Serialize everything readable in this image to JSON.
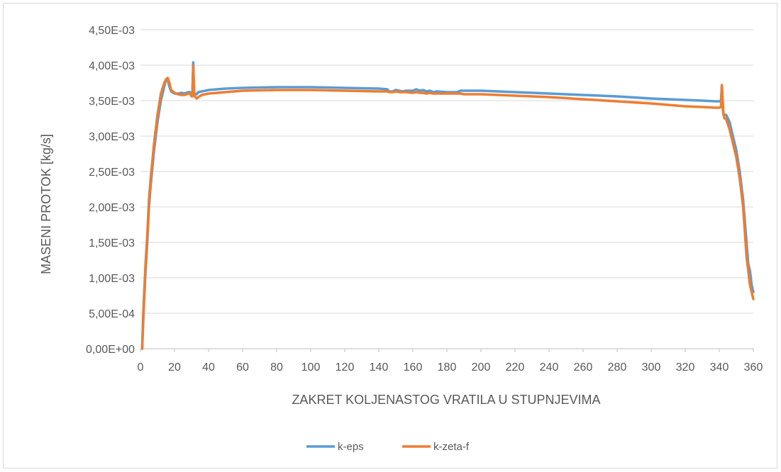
{
  "chart_data": {
    "type": "line",
    "title": "",
    "xlabel": "ZAKRET KOLJENASTOG VRATILA U STUPNJEVIMA",
    "ylabel": "MASENI PROTOK [kg/s]",
    "xlim": [
      0,
      360
    ],
    "ylim": [
      0,
      0.0045
    ],
    "x_ticks": [
      0,
      20,
      40,
      60,
      80,
      100,
      120,
      140,
      160,
      180,
      200,
      220,
      240,
      260,
      280,
      300,
      320,
      340,
      360
    ],
    "x_tick_labels": [
      "0",
      "20",
      "40",
      "60",
      "80",
      "100",
      "120",
      "140",
      "160",
      "180",
      "200",
      "220",
      "240",
      "260",
      "280",
      "300",
      "320",
      "340",
      "360"
    ],
    "y_ticks": [
      0,
      0.0005,
      0.001,
      0.0015,
      0.002,
      0.0025,
      0.003,
      0.0035,
      0.004,
      0.0045
    ],
    "y_tick_labels": [
      "0,00E+00",
      "5,00E-04",
      "1,00E-03",
      "1,50E-03",
      "2,00E-03",
      "2,50E-03",
      "3,00E-03",
      "3,50E-03",
      "4,00E-03",
      "4,50E-03"
    ],
    "grid": "horizontal",
    "legend_position": "bottom",
    "series": [
      {
        "name": "k-eps",
        "color": "#5b9bd5",
        "x": [
          1,
          1.5,
          2,
          3,
          4,
          5,
          6,
          8,
          10,
          12,
          14,
          15,
          16,
          17,
          18,
          20,
          22,
          24,
          26,
          28,
          29,
          30,
          30.5,
          31,
          31.5,
          32,
          33,
          34,
          36,
          40,
          50,
          60,
          80,
          100,
          120,
          140,
          145,
          146,
          148,
          150,
          152,
          154,
          156,
          160,
          162,
          164,
          166,
          168,
          170,
          172,
          174,
          180,
          186,
          188,
          190,
          200,
          220,
          240,
          260,
          280,
          300,
          320,
          330,
          338,
          340,
          341,
          341.5,
          342,
          342.5,
          343,
          344,
          346,
          348,
          350,
          352,
          354,
          356,
          357,
          358,
          359,
          360
        ],
        "y": [
          0,
          0.0003,
          0.0006,
          0.0011,
          0.0015,
          0.002,
          0.0023,
          0.0028,
          0.0032,
          0.0035,
          0.0037,
          0.0038,
          0.00379,
          0.0037,
          0.00363,
          0.0036,
          0.0036,
          0.00361,
          0.0036,
          0.00362,
          0.00362,
          0.0036,
          0.0036,
          0.00404,
          0.0036,
          0.0036,
          0.00359,
          0.00362,
          0.00363,
          0.00365,
          0.00367,
          0.00368,
          0.00369,
          0.00369,
          0.00368,
          0.00367,
          0.00366,
          0.00363,
          0.00363,
          0.00365,
          0.00364,
          0.00363,
          0.00364,
          0.00364,
          0.00366,
          0.00364,
          0.00365,
          0.00363,
          0.00364,
          0.00362,
          0.00363,
          0.00362,
          0.00362,
          0.00364,
          0.00364,
          0.00364,
          0.00362,
          0.0036,
          0.00358,
          0.00356,
          0.00353,
          0.00351,
          0.0035,
          0.00349,
          0.00349,
          0.0035,
          0.0037,
          0.0034,
          0.0033,
          0.0033,
          0.0033,
          0.0032,
          0.003,
          0.0028,
          0.0025,
          0.0021,
          0.0015,
          0.0012,
          0.0011,
          0.0009,
          0.0008
        ]
      },
      {
        "name": "k-zeta-f",
        "color": "#ed7d31",
        "x": [
          1,
          1.5,
          2,
          3,
          4,
          5,
          6,
          8,
          10,
          12,
          14,
          15,
          16,
          17,
          18,
          20,
          22,
          24,
          26,
          28,
          29,
          30,
          30.5,
          31,
          31.5,
          32,
          33,
          34,
          36,
          40,
          50,
          60,
          80,
          100,
          120,
          140,
          145,
          146,
          148,
          150,
          152,
          154,
          156,
          160,
          162,
          164,
          166,
          168,
          170,
          172,
          174,
          180,
          186,
          188,
          190,
          200,
          220,
          240,
          260,
          280,
          300,
          320,
          330,
          338,
          340,
          341,
          341.5,
          342,
          342.5,
          343,
          344,
          346,
          348,
          350,
          352,
          354,
          356,
          357,
          358,
          359,
          360
        ],
        "y": [
          0,
          0.0004,
          0.0007,
          0.0012,
          0.0016,
          0.0021,
          0.0024,
          0.0029,
          0.0033,
          0.0036,
          0.00375,
          0.0038,
          0.00382,
          0.00375,
          0.00365,
          0.00361,
          0.00359,
          0.00358,
          0.00358,
          0.0036,
          0.0036,
          0.00356,
          0.00356,
          0.00399,
          0.0036,
          0.00356,
          0.00353,
          0.00355,
          0.00358,
          0.0036,
          0.00362,
          0.00364,
          0.00365,
          0.00365,
          0.00364,
          0.00363,
          0.00363,
          0.00362,
          0.00362,
          0.00363,
          0.00362,
          0.00362,
          0.00362,
          0.00361,
          0.00362,
          0.00361,
          0.00361,
          0.0036,
          0.00361,
          0.0036,
          0.0036,
          0.0036,
          0.0036,
          0.0036,
          0.00359,
          0.00359,
          0.00357,
          0.00355,
          0.00352,
          0.00349,
          0.00346,
          0.00342,
          0.00341,
          0.0034,
          0.0034,
          0.00341,
          0.00372,
          0.0035,
          0.0033,
          0.00325,
          0.00324,
          0.0031,
          0.0029,
          0.0027,
          0.0024,
          0.002,
          0.0013,
          0.0011,
          0.0009,
          0.0008,
          0.0007
        ]
      }
    ]
  }
}
